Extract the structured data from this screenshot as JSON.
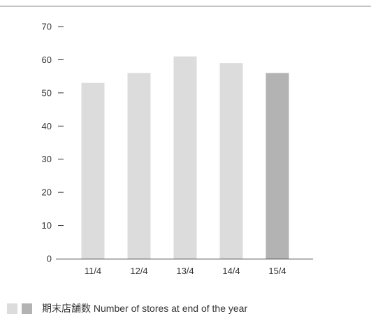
{
  "chart_data": {
    "type": "bar",
    "categories": [
      "11/4",
      "12/4",
      "13/4",
      "14/4",
      "15/4"
    ],
    "values": [
      53,
      56,
      61,
      59,
      56
    ],
    "highlight_index": 4,
    "ylim": [
      0,
      70
    ],
    "yticks": [
      "0",
      "10",
      "20",
      "30",
      "40",
      "50",
      "60",
      "70"
    ],
    "grid": false,
    "legend_position": "bottom-left",
    "legend": {
      "label": "期末店舗数 Number of stores at end of the year"
    },
    "colors": {
      "bar": "#dcdcdc",
      "bar_highlight": "#b3b3b3",
      "axis": "#333333",
      "top_rule": "#888888"
    }
  }
}
